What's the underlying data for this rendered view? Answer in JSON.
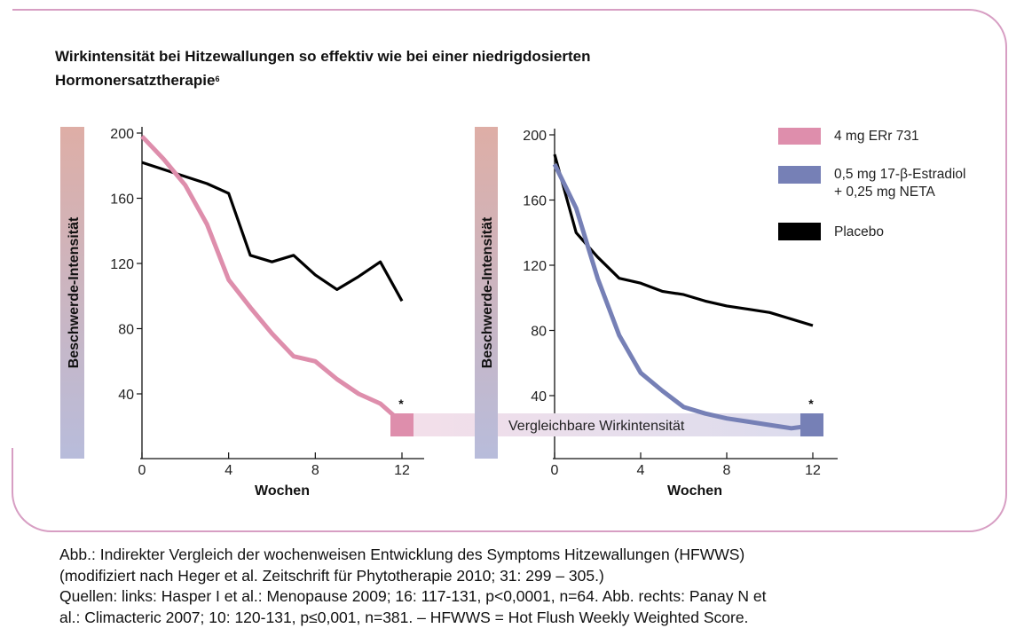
{
  "title": {
    "line1": "Wirkintensität bei Hitzewallungen so effektiv wie bei einer niedrigdosierten",
    "line2": "Hormonersatztherapie",
    "footnote": "6"
  },
  "colors": {
    "pink": "#de8eac",
    "blue": "#7680b6",
    "black": "#000000",
    "border": "#d79ec3",
    "gradient_top": "#deaea6",
    "gradient_bottom": "#b8bcdb",
    "band_left": "#f2dfea",
    "band_right": "#dcdcec"
  },
  "band_label": "Vergleichbare Wirkintensität",
  "significance_marker": "*",
  "legend": [
    {
      "label": "4 mg ERr 731",
      "color": "#de8eac"
    },
    {
      "label": "0,5 mg 17-β-Estradiol",
      "label2": "+ 0,25 mg NETA",
      "color": "#7680b6"
    },
    {
      "label": "Placebo",
      "color": "#000000"
    }
  ],
  "caption": {
    "line1": "Abb.: Indirekter Vergleich der wochenweisen Entwicklung des Symptoms Hitzewallungen (HFWWS)",
    "line2": "(modifiziert nach Heger et al. Zeitschrift für Phytotherapie 2010; 31: 299 – 305.)",
    "line3": "Quellen: links: Hasper I et al.: Menopause 2009; 16: 117-131, p<0,0001, n=64. Abb. rechts: Panay N et",
    "line4": "al.: Climacteric 2007; 10: 120-131, p≤0,001, n=381. – HFWWS = Hot Flush Weekly Weighted Score."
  },
  "chart_data": [
    {
      "type": "line",
      "title": "",
      "xlabel": "Wochen",
      "ylabel": "Beschwerde-Intensität",
      "xlim": [
        0,
        12
      ],
      "ylim": [
        0,
        200
      ],
      "xticks": [
        "0",
        "4",
        "8",
        "12"
      ],
      "yticks": [
        "200",
        "160",
        "120",
        "80",
        "40"
      ],
      "grid": false,
      "series": [
        {
          "name": "Placebo",
          "color": "#000000",
          "x": [
            0,
            3,
            4,
            5,
            6,
            7,
            8,
            9,
            10,
            11,
            12
          ],
          "y": [
            182,
            169,
            163,
            125,
            121,
            125,
            113,
            104,
            112,
            121,
            97
          ]
        },
        {
          "name": "4 mg ERr 731",
          "color": "#de8eac",
          "x": [
            0,
            1,
            2,
            3,
            4,
            5,
            6,
            7,
            8,
            9,
            10,
            11,
            11.6
          ],
          "y": [
            198,
            184,
            168,
            144,
            110,
            93,
            77,
            63,
            60,
            49,
            40,
            34,
            27
          ]
        }
      ],
      "annotations": [
        "*"
      ]
    },
    {
      "type": "line",
      "title": "",
      "xlabel": "Wochen",
      "ylabel": "Beschwerde-Intensität",
      "xlim": [
        0,
        12
      ],
      "ylim": [
        0,
        200
      ],
      "xticks": [
        "0",
        "4",
        "8",
        "12"
      ],
      "yticks": [
        "200",
        "160",
        "120",
        "80",
        "40"
      ],
      "grid": false,
      "series": [
        {
          "name": "Placebo",
          "color": "#000000",
          "x": [
            0,
            1,
            2,
            3,
            4,
            5,
            6,
            7,
            8,
            9,
            10,
            12
          ],
          "y": [
            188,
            140,
            125,
            112,
            109,
            104,
            102,
            98,
            95,
            93,
            91,
            83
          ]
        },
        {
          "name": "0,5 mg 17-β-Estradiol + 0,25 mg NETA",
          "color": "#7680b6",
          "x": [
            0,
            1,
            2,
            3,
            4,
            5,
            6,
            7,
            8,
            9,
            10,
            11,
            11.6
          ],
          "y": [
            182,
            155,
            112,
            77,
            54,
            43,
            33,
            29,
            26,
            24,
            22,
            20,
            21
          ]
        }
      ],
      "annotations": [
        "*",
        "Vergleichbare Wirkintensität"
      ]
    }
  ]
}
